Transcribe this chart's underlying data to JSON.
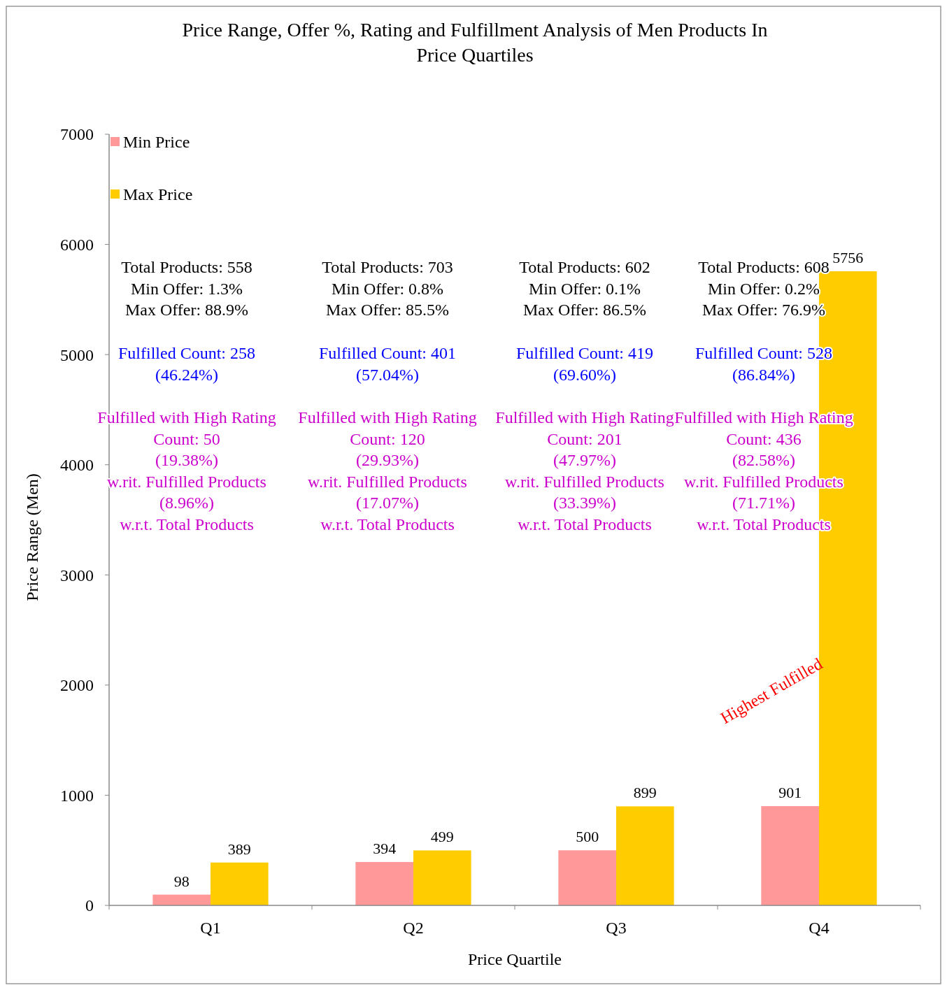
{
  "chart_data": {
    "type": "bar",
    "title": "Price Range, Offer %, Rating and Fulfillment Analysis of Men Products In Price Quartiles",
    "xlabel": "Price Quartile",
    "ylabel": "Price Range (Men)",
    "categories": [
      "Q1",
      "Q2",
      "Q3",
      "Q4"
    ],
    "series": [
      {
        "name": "Min Price",
        "color": "#ff9999",
        "values": [
          98,
          394,
          500,
          901
        ]
      },
      {
        "name": "Max Price",
        "color": "#ffcc00",
        "values": [
          389,
          499,
          899,
          5756
        ]
      }
    ],
    "ylim": [
      0,
      7000
    ],
    "yticks": [
      0,
      1000,
      2000,
      3000,
      4000,
      5000,
      6000,
      7000
    ],
    "data_labels": true,
    "legend": "top left",
    "grid": false,
    "annotations": [
      "Total Products: 558\nMin Offer: 1.3%\nMax Offer: 88.9%",
      "Fulfilled Count: 258\n(46.24%)",
      "Fulfilled with High Rating\nCount: 50\n(19.38%)\nw.rit. Fulfilled Products\n(8.96%)\nw.r.t. Total Products",
      "Total Products: 703\nMin Offer: 0.8%\nMax Offer: 85.5%",
      "Fulfilled Count: 401\n(57.04%)",
      "Fulfilled with High Rating\nCount: 120\n(29.93%)\nw.rit. Fulfilled Products\n(17.07%)\nw.r.t. Total Products",
      "Total Products: 602\nMin Offer: 0.1%\nMax Offer: 86.5%",
      "Fulfilled Count: 419\n(69.60%)",
      "Fulfilled with High Rating\nCount: 201\n(47.97%)\nw.rit. Fulfilled Products\n(33.39%)\nw.r.t. Total Products",
      "Total Products: 608\nMin Offer: 0.2%\nMax Offer: 76.9%",
      "Fulfilled Count: 528\n(86.84%)",
      "Fulfilled with High Rating\nCount: 436\n(82.58%)\nw.rit. Fulfilled Products\n(71.71%)\nw.r.t. Total Products",
      "Highest Fulfilled"
    ]
  }
}
